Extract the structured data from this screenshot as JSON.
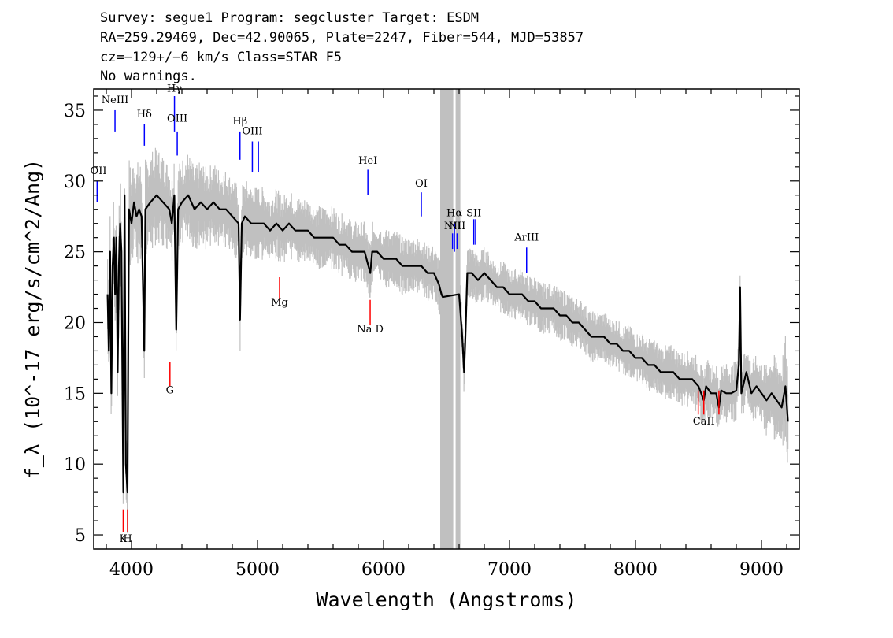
{
  "header": {
    "line1": "Survey: segue1 Program: segcluster Target: ESDM",
    "line2": "RA=259.29469, Dec=42.90065, Plate=2247, Fiber=544, MJD=53857",
    "line3": "cz=−129+/−6 km/s Class=STAR F5",
    "line4": "No warnings."
  },
  "chart_data": {
    "type": "line",
    "title": "",
    "xlabel": "Wavelength (Angstroms)",
    "ylabel": "f_λ (10^-17 erg/s/cm^2/Ang)",
    "xlim": [
      3700,
      9300
    ],
    "ylim": [
      4,
      36.5
    ],
    "x_ticks": [
      4000,
      5000,
      6000,
      7000,
      8000,
      9000
    ],
    "y_ticks": [
      5,
      10,
      15,
      20,
      25,
      30,
      35
    ],
    "grid": false,
    "masked_band": [
      6450,
      6610
    ],
    "series": [
      {
        "color": "#000000",
        "points": [
          [
            3810,
            22
          ],
          [
            3820,
            18
          ],
          [
            3830,
            25
          ],
          [
            3840,
            15
          ],
          [
            3850,
            24
          ],
          [
            3860,
            26
          ],
          [
            3870,
            22
          ],
          [
            3880,
            26
          ],
          [
            3890,
            16.5
          ],
          [
            3900,
            24
          ],
          [
            3910,
            27
          ],
          [
            3920,
            25
          ],
          [
            3935,
            8
          ],
          [
            3945,
            29
          ],
          [
            3955,
            10
          ],
          [
            3968,
            8
          ],
          [
            3980,
            28
          ],
          [
            4000,
            27
          ],
          [
            4020,
            28.5
          ],
          [
            4040,
            27.5
          ],
          [
            4060,
            28
          ],
          [
            4080,
            27.5
          ],
          [
            4101,
            18
          ],
          [
            4110,
            28
          ],
          [
            4150,
            28.5
          ],
          [
            4200,
            29
          ],
          [
            4250,
            28.5
          ],
          [
            4300,
            28
          ],
          [
            4320,
            27
          ],
          [
            4340,
            29
          ],
          [
            4355,
            19.5
          ],
          [
            4370,
            28
          ],
          [
            4400,
            28.5
          ],
          [
            4450,
            29
          ],
          [
            4500,
            28
          ],
          [
            4550,
            28.5
          ],
          [
            4600,
            28
          ],
          [
            4650,
            28.5
          ],
          [
            4700,
            28
          ],
          [
            4750,
            28
          ],
          [
            4800,
            27.5
          ],
          [
            4850,
            27
          ],
          [
            4861,
            20.2
          ],
          [
            4875,
            27
          ],
          [
            4900,
            27.5
          ],
          [
            4950,
            27
          ],
          [
            5000,
            27
          ],
          [
            5050,
            27
          ],
          [
            5100,
            26.5
          ],
          [
            5150,
            27
          ],
          [
            5200,
            26.5
          ],
          [
            5250,
            27
          ],
          [
            5300,
            26.5
          ],
          [
            5350,
            26.5
          ],
          [
            5400,
            26.5
          ],
          [
            5450,
            26
          ],
          [
            5500,
            26
          ],
          [
            5550,
            26
          ],
          [
            5600,
            26
          ],
          [
            5650,
            25.5
          ],
          [
            5700,
            25.5
          ],
          [
            5750,
            25
          ],
          [
            5800,
            25
          ],
          [
            5850,
            25
          ],
          [
            5880,
            24
          ],
          [
            5895,
            23.5
          ],
          [
            5910,
            25
          ],
          [
            5950,
            25
          ],
          [
            6000,
            24.5
          ],
          [
            6050,
            24.5
          ],
          [
            6100,
            24.5
          ],
          [
            6150,
            24
          ],
          [
            6200,
            24
          ],
          [
            6250,
            24
          ],
          [
            6300,
            24
          ],
          [
            6350,
            23.5
          ],
          [
            6400,
            23.5
          ],
          [
            6440,
            22.7
          ],
          [
            6460,
            22
          ],
          [
            6470,
            21.8
          ],
          [
            6600,
            22
          ],
          [
            6625,
            19
          ],
          [
            6640,
            16.5
          ],
          [
            6650,
            19
          ],
          [
            6665,
            23.5
          ],
          [
            6700,
            23.5
          ],
          [
            6750,
            23
          ],
          [
            6800,
            23.5
          ],
          [
            6850,
            23
          ],
          [
            6900,
            22.5
          ],
          [
            6950,
            22.5
          ],
          [
            7000,
            22
          ],
          [
            7050,
            22
          ],
          [
            7100,
            22
          ],
          [
            7150,
            21.5
          ],
          [
            7200,
            21.5
          ],
          [
            7250,
            21
          ],
          [
            7300,
            21
          ],
          [
            7350,
            21
          ],
          [
            7400,
            20.5
          ],
          [
            7450,
            20.5
          ],
          [
            7500,
            20
          ],
          [
            7550,
            20
          ],
          [
            7600,
            19.5
          ],
          [
            7650,
            19
          ],
          [
            7700,
            19
          ],
          [
            7750,
            19
          ],
          [
            7800,
            18.5
          ],
          [
            7850,
            18.5
          ],
          [
            7900,
            18
          ],
          [
            7950,
            18
          ],
          [
            8000,
            17.5
          ],
          [
            8050,
            17.5
          ],
          [
            8100,
            17
          ],
          [
            8150,
            17
          ],
          [
            8200,
            16.5
          ],
          [
            8250,
            16.5
          ],
          [
            8300,
            16.5
          ],
          [
            8350,
            16
          ],
          [
            8400,
            16
          ],
          [
            8450,
            16
          ],
          [
            8500,
            15.5
          ],
          [
            8542,
            14.5
          ],
          [
            8560,
            15.5
          ],
          [
            8600,
            15
          ],
          [
            8640,
            15
          ],
          [
            8662,
            14
          ],
          [
            8680,
            15.2
          ],
          [
            8720,
            15
          ],
          [
            8760,
            15
          ],
          [
            8800,
            15.2
          ],
          [
            8820,
            17
          ],
          [
            8830,
            22.5
          ],
          [
            8840,
            15
          ],
          [
            8880,
            16.5
          ],
          [
            8920,
            15
          ],
          [
            8960,
            15.5
          ],
          [
            9000,
            15
          ],
          [
            9040,
            14.5
          ],
          [
            9080,
            15
          ],
          [
            9120,
            14.5
          ],
          [
            9160,
            14
          ],
          [
            9190,
            15.5
          ],
          [
            9210,
            13
          ]
        ]
      }
    ],
    "error_band": {
      "color": "#c0c0c0",
      "width": [
        [
          3800,
          2.5
        ],
        [
          4000,
          2.5
        ],
        [
          4500,
          2
        ],
        [
          5500,
          1.5
        ],
        [
          7000,
          1.2
        ],
        [
          8000,
          1.2
        ],
        [
          9000,
          1.5
        ],
        [
          9210,
          2.5
        ]
      ]
    },
    "emission_lines": [
      {
        "label": "OII",
        "x": 3727,
        "y": [
          28.5,
          30
        ],
        "color": "#0000ff",
        "label_y": 30.5
      },
      {
        "label": "NeIII",
        "x": 3869,
        "y": [
          33.5,
          35
        ],
        "color": "#0000ff",
        "label_y": 35.5
      },
      {
        "label": "Hδ",
        "x": 4102,
        "y": [
          32.5,
          34
        ],
        "color": "#0000ff",
        "label_y": 34.5
      },
      {
        "label": "Hγ",
        "x": 4341,
        "y": [
          33.5,
          36
        ],
        "color": "#0000ff",
        "label_y": 36.3
      },
      {
        "label": "OIII",
        "x": 4363,
        "y": [
          31.8,
          33.5
        ],
        "color": "#0000ff",
        "label_y": 34.2
      },
      {
        "label": "Hβ",
        "x": 4861,
        "y": [
          31.5,
          33.5
        ],
        "color": "#0000ff",
        "label_y": 34
      },
      {
        "label": "OIII",
        "x": 4959,
        "y": [
          30.6,
          32.8
        ],
        "color": "#0000ff",
        "label_y": 33.3
      },
      {
        "label": "",
        "x": 5007,
        "y": [
          30.6,
          32.8
        ],
        "color": "#0000ff",
        "label_y": 33.3
      },
      {
        "label": "HeI",
        "x": 5876,
        "y": [
          29,
          30.8
        ],
        "color": "#0000ff",
        "label_y": 31.2
      },
      {
        "label": "OI",
        "x": 6300,
        "y": [
          27.5,
          29.2
        ],
        "color": "#0000ff",
        "label_y": 29.6
      },
      {
        "label": "NII",
        "x": 6548,
        "y": [
          25.2,
          26.3
        ],
        "color": "#0000ff",
        "label_y": 26.6
      },
      {
        "label": "Hα",
        "x": 6563,
        "y": [
          25,
          27
        ],
        "color": "#0000ff",
        "label_y": 27.5
      },
      {
        "label": "NII",
        "x": 6584,
        "y": [
          25.2,
          26.3
        ],
        "color": "#0000ff",
        "label_y": 26.6
      },
      {
        "label": "SII",
        "x": 6717,
        "y": [
          25.5,
          27.3
        ],
        "color": "#0000ff",
        "label_y": 27.5
      },
      {
        "label": "",
        "x": 6731,
        "y": [
          25.5,
          27.3
        ],
        "color": "#0000ff",
        "label_y": 27.5
      },
      {
        "label": "ArIII",
        "x": 7136,
        "y": [
          23.5,
          25.3
        ],
        "color": "#0000ff",
        "label_y": 25.8
      }
    ],
    "absorption_lines": [
      {
        "label": "K",
        "x": 3934,
        "y": [
          5.2,
          6.8
        ],
        "color": "#ff0000",
        "label_y": 4.5
      },
      {
        "label": "H",
        "x": 3969,
        "y": [
          5.2,
          6.8
        ],
        "color": "#ff0000",
        "label_y": 4.5
      },
      {
        "label": "G",
        "x": 4305,
        "y": [
          15.5,
          17.2
        ],
        "color": "#ff0000",
        "label_y": 15
      },
      {
        "label": "Mg",
        "x": 5175,
        "y": [
          21.5,
          23.2
        ],
        "color": "#ff0000",
        "label_y": 21.2
      },
      {
        "label": "Na D",
        "x": 5894,
        "y": [
          19.8,
          21.6
        ],
        "color": "#ff0000",
        "label_y": 19.3
      },
      {
        "label": "",
        "x": 8498,
        "y": [
          13.5,
          15.2
        ],
        "color": "#ff0000",
        "label_y": 12.8
      },
      {
        "label": "CaII",
        "x": 8542,
        "y": [
          13.5,
          15.2
        ],
        "color": "#ff0000",
        "label_y": 12.8
      },
      {
        "label": "",
        "x": 8662,
        "y": [
          13.5,
          15.2
        ],
        "color": "#ff0000",
        "label_y": 12.8
      }
    ]
  }
}
